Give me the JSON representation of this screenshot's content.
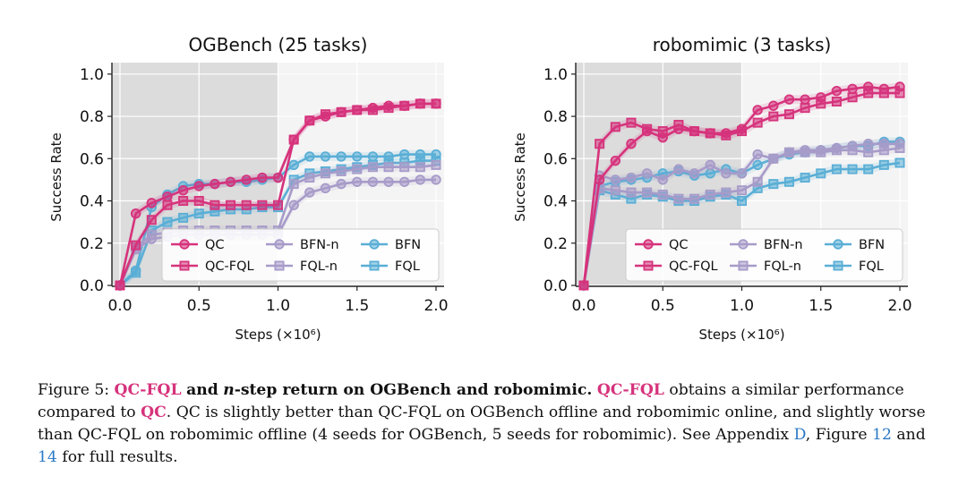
{
  "chart_data": [
    {
      "type": "line",
      "title": "OGBench (25 tasks)",
      "xlabel": "Steps (×10⁶)",
      "ylabel": "Success Rate",
      "xlim": [
        0,
        2.0
      ],
      "ylim": [
        0,
        1.05
      ],
      "xticks": [
        "0.0",
        "0.5",
        "1.0",
        "1.5",
        "2.0"
      ],
      "yticks": [
        "0.0",
        "0.2",
        "0.4",
        "0.6",
        "0.8",
        "1.0"
      ],
      "offline_shaded_range": [
        0,
        1.0
      ],
      "legend_position": "lower-right",
      "x": [
        0,
        0.1,
        0.2,
        0.3,
        0.4,
        0.5,
        0.6,
        0.7,
        0.8,
        0.9,
        1.0,
        1.1,
        1.2,
        1.3,
        1.4,
        1.5,
        1.6,
        1.7,
        1.8,
        1.9,
        2.0
      ],
      "series": [
        {
          "name": "QC",
          "color": "#d6337c",
          "marker": "circle",
          "values": [
            0,
            0.34,
            0.39,
            0.42,
            0.45,
            0.47,
            0.48,
            0.49,
            0.5,
            0.51,
            0.51,
            0.69,
            0.78,
            0.8,
            0.82,
            0.83,
            0.84,
            0.85,
            0.85,
            0.86,
            0.86
          ]
        },
        {
          "name": "QC-FQL",
          "color": "#d6337c",
          "marker": "square",
          "values": [
            0,
            0.19,
            0.31,
            0.38,
            0.4,
            0.4,
            0.38,
            0.38,
            0.38,
            0.38,
            0.38,
            0.69,
            0.78,
            0.81,
            0.82,
            0.83,
            0.83,
            0.84,
            0.85,
            0.86,
            0.86
          ]
        },
        {
          "name": "BFN-n",
          "color": "#a79bc9",
          "marker": "circle",
          "values": [
            0,
            0.17,
            0.22,
            0.23,
            0.24,
            0.24,
            0.24,
            0.24,
            0.24,
            0.24,
            0.24,
            0.38,
            0.44,
            0.46,
            0.48,
            0.49,
            0.49,
            0.49,
            0.49,
            0.5,
            0.5
          ]
        },
        {
          "name": "FQL-n",
          "color": "#a79bc9",
          "marker": "square",
          "values": [
            0,
            0.18,
            0.24,
            0.25,
            0.26,
            0.26,
            0.26,
            0.26,
            0.26,
            0.26,
            0.26,
            0.48,
            0.51,
            0.53,
            0.54,
            0.55,
            0.56,
            0.56,
            0.56,
            0.56,
            0.57
          ]
        },
        {
          "name": "BFN",
          "color": "#5aaed6",
          "marker": "circle",
          "values": [
            0,
            0.07,
            0.37,
            0.43,
            0.47,
            0.48,
            0.48,
            0.49,
            0.49,
            0.5,
            0.51,
            0.57,
            0.61,
            0.61,
            0.61,
            0.61,
            0.61,
            0.61,
            0.62,
            0.62,
            0.62
          ]
        },
        {
          "name": "FQL",
          "color": "#5aaed6",
          "marker": "square",
          "values": [
            0,
            0.06,
            0.26,
            0.3,
            0.32,
            0.34,
            0.35,
            0.36,
            0.36,
            0.37,
            0.37,
            0.5,
            0.53,
            0.54,
            0.55,
            0.56,
            0.57,
            0.58,
            0.58,
            0.59,
            0.59
          ]
        }
      ]
    },
    {
      "type": "line",
      "title": "robomimic (3 tasks)",
      "xlabel": "Steps (×10⁶)",
      "ylabel": "Success Rate",
      "xlim": [
        0,
        2.0
      ],
      "ylim": [
        0,
        1.05
      ],
      "xticks": [
        "0.0",
        "0.5",
        "1.0",
        "1.5",
        "2.0"
      ],
      "yticks": [
        "0.0",
        "0.2",
        "0.4",
        "0.6",
        "0.8",
        "1.0"
      ],
      "offline_shaded_range": [
        0,
        1.0
      ],
      "legend_position": "lower-right",
      "x": [
        0,
        0.1,
        0.2,
        0.3,
        0.4,
        0.5,
        0.6,
        0.7,
        0.8,
        0.9,
        1.0,
        1.1,
        1.2,
        1.3,
        1.4,
        1.5,
        1.6,
        1.7,
        1.8,
        1.9,
        2.0
      ],
      "series": [
        {
          "name": "QC",
          "color": "#d6337c",
          "marker": "circle",
          "values": [
            0,
            0.5,
            0.59,
            0.67,
            0.73,
            0.7,
            0.74,
            0.73,
            0.72,
            0.72,
            0.74,
            0.83,
            0.85,
            0.88,
            0.88,
            0.89,
            0.92,
            0.93,
            0.94,
            0.93,
            0.94
          ]
        },
        {
          "name": "QC-FQL",
          "color": "#d6337c",
          "marker": "square",
          "values": [
            0,
            0.67,
            0.75,
            0.77,
            0.74,
            0.73,
            0.76,
            0.73,
            0.72,
            0.71,
            0.73,
            0.77,
            0.8,
            0.81,
            0.84,
            0.86,
            0.87,
            0.89,
            0.91,
            0.91,
            0.91
          ]
        },
        {
          "name": "BFN-n",
          "color": "#a79bc9",
          "marker": "circle",
          "values": [
            0,
            0.52,
            0.5,
            0.51,
            0.53,
            0.5,
            0.55,
            0.53,
            0.57,
            0.53,
            0.53,
            0.62,
            0.6,
            0.63,
            0.64,
            0.64,
            0.65,
            0.66,
            0.67,
            0.67,
            0.67
          ]
        },
        {
          "name": "FQL-n",
          "color": "#a79bc9",
          "marker": "square",
          "values": [
            0,
            0.46,
            0.45,
            0.44,
            0.44,
            0.43,
            0.41,
            0.41,
            0.43,
            0.44,
            0.45,
            0.49,
            0.6,
            0.63,
            0.63,
            0.63,
            0.64,
            0.64,
            0.63,
            0.64,
            0.65
          ]
        },
        {
          "name": "BFN",
          "color": "#5aaed6",
          "marker": "circle",
          "values": [
            0,
            0.47,
            0.49,
            0.5,
            0.51,
            0.53,
            0.54,
            0.52,
            0.53,
            0.55,
            0.53,
            0.57,
            0.6,
            0.62,
            0.63,
            0.64,
            0.65,
            0.66,
            0.66,
            0.68,
            0.68
          ]
        },
        {
          "name": "FQL",
          "color": "#5aaed6",
          "marker": "square",
          "values": [
            0,
            0.45,
            0.43,
            0.41,
            0.43,
            0.42,
            0.4,
            0.4,
            0.42,
            0.43,
            0.4,
            0.46,
            0.48,
            0.49,
            0.51,
            0.53,
            0.55,
            0.55,
            0.55,
            0.57,
            0.58
          ]
        }
      ]
    }
  ],
  "caption": {
    "figure_label": "Figure 5:",
    "title_hl": "QC-FQL",
    "title_and": "and",
    "title_n": "n",
    "title_rest": "-step return on OGBench and robomimic.",
    "hl_qcfql": "QC-FQL",
    "text1": "obtains a similar performance compared to",
    "hl_qc": "QC",
    "text2": ". QC is slightly better than QC-FQL on OGBench offline and robomimic online, and slightly worse than QC-FQL on robomimic offline (4 seeds for OGBench, 5 seeds for robomimic). See Appendix",
    "link_appendix": "D",
    "text3": ", Figure",
    "link_fig12": "12",
    "text4": "and",
    "link_fig14": "14",
    "text5": "for full results."
  }
}
